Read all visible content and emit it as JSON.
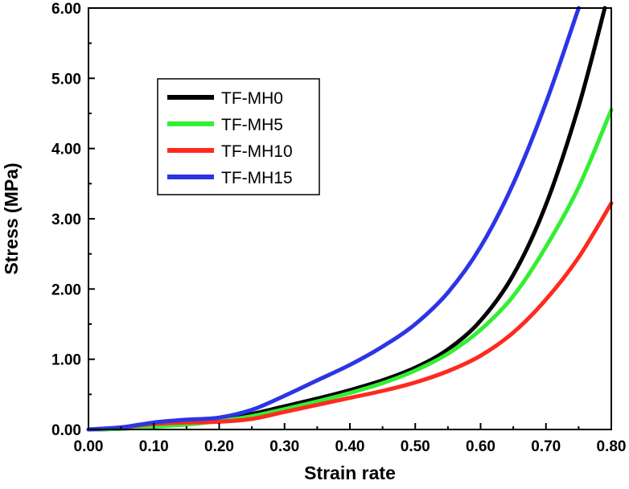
{
  "chart_data": {
    "type": "line",
    "title": "",
    "xlabel": "Strain rate",
    "ylabel": "Stress (MPa)",
    "xlim": [
      0.0,
      0.8
    ],
    "ylim": [
      0.0,
      6.0
    ],
    "xticks": [
      "0.00",
      "0.10",
      "0.20",
      "0.30",
      "0.40",
      "0.50",
      "0.60",
      "0.70",
      "0.80"
    ],
    "yticks": [
      "0.00",
      "1.00",
      "2.00",
      "3.00",
      "4.00",
      "5.00",
      "6.00"
    ],
    "legend_position": "upper-left",
    "grid": false,
    "series": [
      {
        "name": "TF-MH0",
        "color": "#000000",
        "x": [
          0.0,
          0.05,
          0.1,
          0.15,
          0.2,
          0.25,
          0.3,
          0.35,
          0.4,
          0.45,
          0.5,
          0.55,
          0.6,
          0.65,
          0.7,
          0.75,
          0.79
        ],
        "y": [
          0.0,
          0.01,
          0.04,
          0.08,
          0.13,
          0.22,
          0.33,
          0.44,
          0.56,
          0.7,
          0.88,
          1.14,
          1.55,
          2.2,
          3.2,
          4.6,
          6.0
        ]
      },
      {
        "name": "TF-MH5",
        "color": "#33ee33",
        "x": [
          0.0,
          0.05,
          0.1,
          0.15,
          0.2,
          0.25,
          0.3,
          0.35,
          0.4,
          0.45,
          0.5,
          0.55,
          0.6,
          0.65,
          0.7,
          0.75,
          0.8
        ],
        "y": [
          0.0,
          0.01,
          0.04,
          0.07,
          0.12,
          0.19,
          0.29,
          0.4,
          0.52,
          0.66,
          0.84,
          1.08,
          1.42,
          1.9,
          2.6,
          3.45,
          4.55
        ]
      },
      {
        "name": "TF-MH10",
        "color": "#ff2a1f",
        "x": [
          0.0,
          0.05,
          0.1,
          0.15,
          0.2,
          0.25,
          0.3,
          0.35,
          0.4,
          0.45,
          0.5,
          0.55,
          0.6,
          0.65,
          0.7,
          0.75,
          0.8
        ],
        "y": [
          0.0,
          0.03,
          0.08,
          0.1,
          0.11,
          0.15,
          0.25,
          0.35,
          0.45,
          0.55,
          0.67,
          0.83,
          1.05,
          1.38,
          1.85,
          2.45,
          3.22
        ]
      },
      {
        "name": "TF-MH15",
        "color": "#2b35e6",
        "x": [
          0.0,
          0.05,
          0.1,
          0.15,
          0.2,
          0.25,
          0.3,
          0.35,
          0.4,
          0.45,
          0.5,
          0.55,
          0.6,
          0.65,
          0.7,
          0.75
        ],
        "y": [
          0.0,
          0.03,
          0.1,
          0.14,
          0.17,
          0.28,
          0.48,
          0.7,
          0.92,
          1.18,
          1.5,
          1.95,
          2.6,
          3.5,
          4.65,
          6.0
        ]
      }
    ]
  }
}
